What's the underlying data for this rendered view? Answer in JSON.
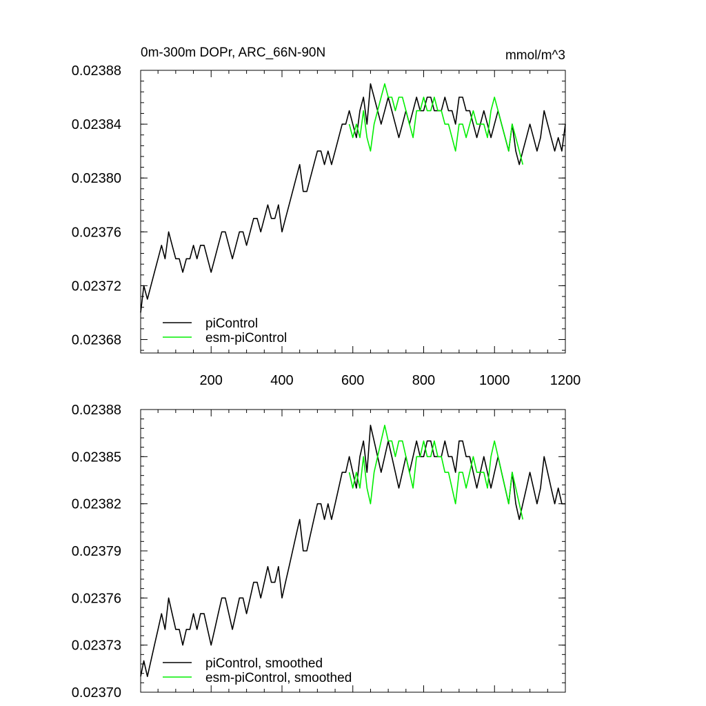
{
  "chart_data": [
    {
      "type": "line",
      "title": "0m-300m DOPr, ARC_66N-90N",
      "units": "mmol/m^3",
      "xlim": [
        1,
        1200
      ],
      "ylim": [
        0.02367,
        0.02388
      ],
      "x_ticks": [
        200,
        400,
        600,
        800,
        1000,
        1200
      ],
      "x_tick_labels": [
        "200",
        "400",
        "600",
        "800",
        "1000",
        "1200"
      ],
      "y_ticks": [
        0.02368,
        0.02372,
        0.02376,
        0.0238,
        0.02384,
        0.02388
      ],
      "y_tick_labels": [
        "0.02368",
        "0.02372",
        "0.02376",
        "0.02380",
        "0.02384",
        "0.02388"
      ],
      "legend_position": "bottom-left",
      "series": [
        {
          "name": "piControl",
          "color": "#000000",
          "x": [
            1,
            10,
            20,
            30,
            40,
            50,
            60,
            70,
            80,
            90,
            100,
            110,
            120,
            130,
            140,
            150,
            160,
            170,
            180,
            190,
            200,
            210,
            220,
            230,
            240,
            250,
            260,
            270,
            280,
            290,
            300,
            310,
            320,
            330,
            340,
            350,
            360,
            370,
            380,
            390,
            400,
            410,
            420,
            430,
            440,
            450,
            460,
            470,
            480,
            490,
            500,
            510,
            520,
            530,
            540,
            550,
            560,
            570,
            580,
            590,
            600,
            610,
            620,
            630,
            640,
            650,
            660,
            670,
            680,
            690,
            700,
            710,
            720,
            730,
            740,
            750,
            760,
            770,
            780,
            790,
            800,
            810,
            820,
            830,
            840,
            850,
            860,
            870,
            880,
            890,
            900,
            910,
            920,
            930,
            940,
            950,
            960,
            970,
            980,
            990,
            1000,
            1010,
            1020,
            1030,
            1040,
            1050,
            1060,
            1070,
            1080,
            1090,
            1100,
            1110,
            1120,
            1130,
            1140,
            1150,
            1160,
            1170,
            1180,
            1190,
            1200
          ],
          "values": [
            0.0237,
            0.02372,
            0.02371,
            0.02372,
            0.02373,
            0.02374,
            0.02375,
            0.02374,
            0.02376,
            0.02375,
            0.02374,
            0.02374,
            0.02373,
            0.02374,
            0.02374,
            0.02375,
            0.02374,
            0.02375,
            0.02375,
            0.02374,
            0.02373,
            0.02374,
            0.02375,
            0.02376,
            0.02376,
            0.02375,
            0.02374,
            0.02375,
            0.02376,
            0.02376,
            0.02375,
            0.02376,
            0.02377,
            0.02377,
            0.02376,
            0.02377,
            0.02378,
            0.02377,
            0.02377,
            0.02378,
            0.02376,
            0.02377,
            0.02378,
            0.02379,
            0.0238,
            0.02381,
            0.02379,
            0.02379,
            0.0238,
            0.02381,
            0.02382,
            0.02382,
            0.02381,
            0.02382,
            0.02381,
            0.02382,
            0.02383,
            0.02384,
            0.02384,
            0.02385,
            0.02384,
            0.02383,
            0.02385,
            0.02386,
            0.02384,
            0.02387,
            0.02386,
            0.02385,
            0.02384,
            0.02385,
            0.02386,
            0.02385,
            0.02384,
            0.02383,
            0.02384,
            0.02385,
            0.02384,
            0.02385,
            0.02386,
            0.02385,
            0.02385,
            0.02386,
            0.02386,
            0.02385,
            0.02385,
            0.02385,
            0.02386,
            0.02385,
            0.02385,
            0.02384,
            0.02386,
            0.02386,
            0.02385,
            0.02385,
            0.02384,
            0.02383,
            0.02384,
            0.02385,
            0.02384,
            0.02383,
            0.02384,
            0.02385,
            0.02384,
            0.02383,
            0.02382,
            0.02384,
            0.02382,
            0.02381,
            0.02382,
            0.02383,
            0.02384,
            0.02383,
            0.02382,
            0.02383,
            0.02385,
            0.02384,
            0.02383,
            0.02382,
            0.02383,
            0.02382,
            0.02384
          ]
        },
        {
          "name": "esm-piControl",
          "color": "#00ee00",
          "x": [
            590,
            600,
            610,
            620,
            630,
            640,
            650,
            660,
            670,
            680,
            690,
            700,
            710,
            720,
            730,
            740,
            750,
            760,
            770,
            780,
            790,
            800,
            810,
            820,
            830,
            840,
            850,
            860,
            870,
            880,
            890,
            900,
            910,
            920,
            930,
            940,
            950,
            960,
            970,
            980,
            990,
            1000,
            1010,
            1020,
            1030,
            1040,
            1050,
            1060,
            1070,
            1080
          ],
          "values": [
            0.02384,
            0.02383,
            0.02384,
            0.02383,
            0.02385,
            0.02383,
            0.02382,
            0.02384,
            0.02385,
            0.02386,
            0.02387,
            0.02386,
            0.02386,
            0.02385,
            0.02386,
            0.02386,
            0.02385,
            0.02384,
            0.02383,
            0.02385,
            0.02385,
            0.02386,
            0.02385,
            0.02385,
            0.02386,
            0.02385,
            0.02385,
            0.02384,
            0.02384,
            0.02383,
            0.02382,
            0.02384,
            0.02384,
            0.02383,
            0.02384,
            0.02385,
            0.02384,
            0.02384,
            0.02384,
            0.02383,
            0.02385,
            0.02386,
            0.02385,
            0.02384,
            0.02383,
            0.02382,
            0.02384,
            0.02383,
            0.02382,
            0.02381
          ]
        }
      ]
    },
    {
      "type": "line",
      "title": "",
      "xlim": [
        1,
        1200
      ],
      "ylim": [
        0.0237,
        0.02388
      ],
      "y_ticks": [
        0.0237,
        0.02373,
        0.02376,
        0.02379,
        0.02382,
        0.02385,
        0.02388
      ],
      "y_tick_labels": [
        "0.02370",
        "0.02373",
        "0.02376",
        "0.02379",
        "0.02382",
        "0.02385",
        "0.02388"
      ],
      "legend_position": "bottom-left",
      "series": [
        {
          "name": "piControl, smoothed",
          "color": "#000000",
          "x": [
            1,
            10,
            20,
            30,
            40,
            50,
            60,
            70,
            80,
            90,
            100,
            110,
            120,
            130,
            140,
            150,
            160,
            170,
            180,
            190,
            200,
            210,
            220,
            230,
            240,
            250,
            260,
            270,
            280,
            290,
            300,
            310,
            320,
            330,
            340,
            350,
            360,
            370,
            380,
            390,
            400,
            410,
            420,
            430,
            440,
            450,
            460,
            470,
            480,
            490,
            500,
            510,
            520,
            530,
            540,
            550,
            560,
            570,
            580,
            590,
            600,
            610,
            620,
            630,
            640,
            650,
            660,
            670,
            680,
            690,
            700,
            710,
            720,
            730,
            740,
            750,
            760,
            770,
            780,
            790,
            800,
            810,
            820,
            830,
            840,
            850,
            860,
            870,
            880,
            890,
            900,
            910,
            920,
            930,
            940,
            950,
            960,
            970,
            980,
            990,
            1000,
            1010,
            1020,
            1030,
            1040,
            1050,
            1060,
            1070,
            1080,
            1090,
            1100,
            1110,
            1120,
            1130,
            1140,
            1150,
            1160,
            1170,
            1180,
            1190,
            1200
          ],
          "values": [
            0.02371,
            0.02372,
            0.02371,
            0.02372,
            0.02373,
            0.02374,
            0.02375,
            0.02374,
            0.02376,
            0.02375,
            0.02374,
            0.02374,
            0.02373,
            0.02374,
            0.02374,
            0.02375,
            0.02374,
            0.02375,
            0.02375,
            0.02374,
            0.02373,
            0.02374,
            0.02375,
            0.02376,
            0.02376,
            0.02375,
            0.02374,
            0.02375,
            0.02376,
            0.02376,
            0.02375,
            0.02376,
            0.02377,
            0.02377,
            0.02376,
            0.02377,
            0.02378,
            0.02377,
            0.02377,
            0.02378,
            0.02376,
            0.02377,
            0.02378,
            0.02379,
            0.0238,
            0.02381,
            0.02379,
            0.02379,
            0.0238,
            0.02381,
            0.02382,
            0.02382,
            0.02381,
            0.02382,
            0.02381,
            0.02382,
            0.02383,
            0.02384,
            0.02384,
            0.02385,
            0.02384,
            0.02383,
            0.02385,
            0.02386,
            0.02384,
            0.02387,
            0.02386,
            0.02385,
            0.02384,
            0.02385,
            0.02386,
            0.02385,
            0.02384,
            0.02383,
            0.02384,
            0.02385,
            0.02384,
            0.02385,
            0.02386,
            0.02385,
            0.02385,
            0.02386,
            0.02386,
            0.02385,
            0.02385,
            0.02385,
            0.02386,
            0.02385,
            0.02385,
            0.02384,
            0.02386,
            0.02386,
            0.02385,
            0.02385,
            0.02384,
            0.02383,
            0.02384,
            0.02385,
            0.02384,
            0.02383,
            0.02384,
            0.02385,
            0.02384,
            0.02383,
            0.02382,
            0.02384,
            0.02382,
            0.02381,
            0.02382,
            0.02383,
            0.02384,
            0.02383,
            0.02382,
            0.02383,
            0.02385,
            0.02384,
            0.02383,
            0.02382,
            0.02383,
            0.02382,
            0.02382
          ]
        },
        {
          "name": "esm-piControl, smoothed",
          "color": "#00ee00",
          "x": [
            590,
            600,
            610,
            620,
            630,
            640,
            650,
            660,
            670,
            680,
            690,
            700,
            710,
            720,
            730,
            740,
            750,
            760,
            770,
            780,
            790,
            800,
            810,
            820,
            830,
            840,
            850,
            860,
            870,
            880,
            890,
            900,
            910,
            920,
            930,
            940,
            950,
            960,
            970,
            980,
            990,
            1000,
            1010,
            1020,
            1030,
            1040,
            1050,
            1060,
            1070,
            1080
          ],
          "values": [
            0.02384,
            0.02383,
            0.02384,
            0.02383,
            0.02385,
            0.02383,
            0.02382,
            0.02384,
            0.02385,
            0.02386,
            0.02387,
            0.02386,
            0.02386,
            0.02385,
            0.02386,
            0.02386,
            0.02385,
            0.02384,
            0.02383,
            0.02385,
            0.02385,
            0.02386,
            0.02385,
            0.02385,
            0.02386,
            0.02385,
            0.02385,
            0.02384,
            0.02384,
            0.02383,
            0.02382,
            0.02384,
            0.02384,
            0.02383,
            0.02384,
            0.02385,
            0.02384,
            0.02384,
            0.02384,
            0.02383,
            0.02385,
            0.02386,
            0.02385,
            0.02384,
            0.02383,
            0.02382,
            0.02384,
            0.02383,
            0.02382,
            0.02381
          ]
        }
      ]
    }
  ]
}
